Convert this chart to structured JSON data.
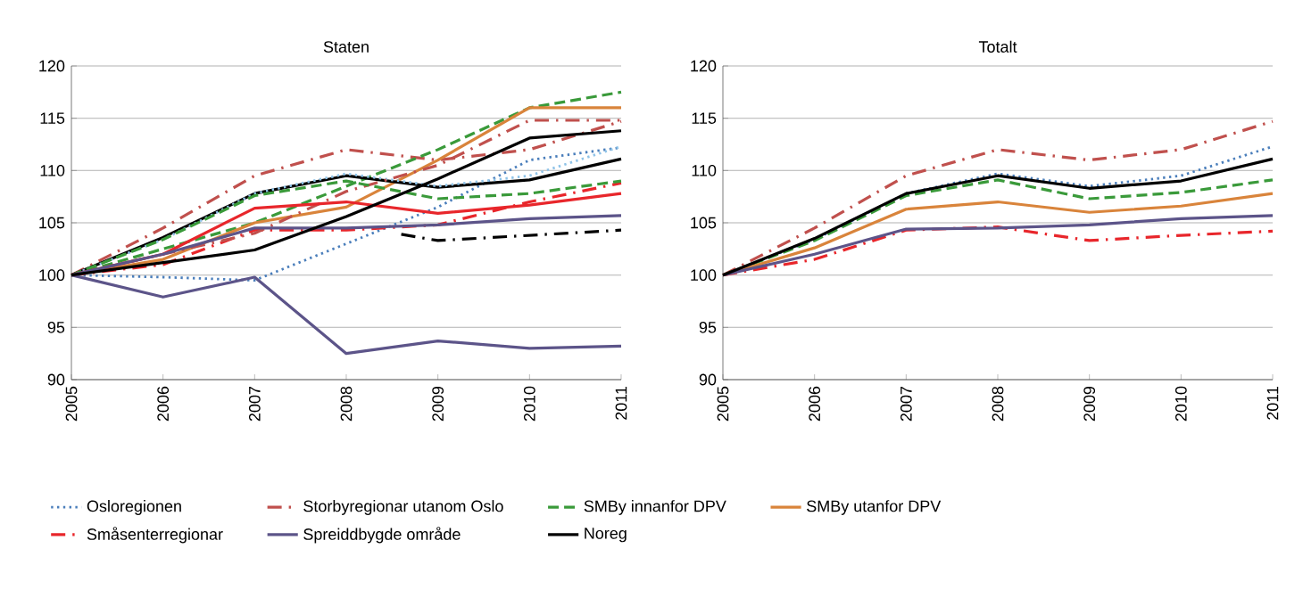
{
  "chart_data": [
    {
      "type": "line",
      "title": "Staten",
      "x": [
        2005,
        2006,
        2007,
        2008,
        2009,
        2010,
        2011
      ],
      "xlim": [
        2005,
        2011
      ],
      "xticks": [
        2005,
        2006,
        2007,
        2008,
        2009,
        2010,
        2011
      ],
      "ylim": [
        90,
        120
      ],
      "yticks": [
        90,
        95,
        100,
        105,
        110,
        115,
        120
      ],
      "grid": "y",
      "legend": "bottom",
      "marker": "none",
      "series": [
        {
          "name": "Osloregionen",
          "color": "#4a7ebb",
          "line_style": "dotted",
          "values": [
            100,
            99.8,
            99.5,
            103,
            106.5,
            111,
            112.2
          ]
        },
        {
          "name": "Storbyregionar utanom Oslo",
          "color": "#c0504d",
          "line_style": "dashdot",
          "values": [
            100,
            104.5,
            109.5,
            112,
            111,
            112,
            114.7
          ]
        },
        {
          "name": "SMBy innanfor DPV",
          "color": "#3a9a3a",
          "line_style": "dashed",
          "values": [
            100,
            102.5,
            105,
            108.5,
            112,
            116,
            117.5
          ]
        },
        {
          "name": "SMBy utanfor DPV",
          "color": "#d9843b",
          "line_style": "solid",
          "values": [
            100,
            101.5,
            105,
            106.5,
            111,
            116,
            116
          ]
        },
        {
          "name": "Småsenterregionar",
          "color": "#e8262b",
          "line_style": "dashdot",
          "values": [
            100,
            101,
            104.3,
            104.3,
            104.8,
            107,
            108.8
          ]
        },
        {
          "name": "Spreiddbygde område",
          "color": "#5c5489",
          "line_style": "solid",
          "values": [
            100,
            97.9,
            99.8,
            92.5,
            93.7,
            93,
            93.2
          ]
        },
        {
          "name": "Noreg",
          "color": "#000000",
          "line_style": "solid",
          "values": [
            100,
            103.6,
            107.8,
            109.5,
            108.4,
            109.1,
            111.1
          ]
        },
        {
          "color": "#8fc3e8",
          "line_style": "dotted",
          "values": [
            100,
            103.4,
            107.8,
            109.7,
            108.5,
            109.5,
            112.3
          ]
        },
        {
          "color": "#c0504d",
          "line_style": "dashdot",
          "values": [
            100,
            102,
            104,
            108,
            110.5,
            114.8,
            114.8
          ]
        },
        {
          "color": "#3a9a3a",
          "line_style": "dashed",
          "values": [
            100,
            103.4,
            107.6,
            109,
            107.3,
            107.8,
            109
          ]
        },
        {
          "color": "#e8262b",
          "line_style": "solid",
          "values": [
            100,
            102,
            106.4,
            107,
            105.9,
            106.7,
            107.8
          ]
        },
        {
          "color": "#5c5489",
          "line_style": "solid",
          "values": [
            100,
            102,
            104.5,
            104.5,
            104.8,
            105.4,
            105.7
          ]
        },
        {
          "color": "#000000",
          "line_style": "solid",
          "values": [
            100,
            101.2,
            102.4,
            105.6,
            109.2,
            113.1,
            113.8
          ]
        },
        {
          "color": "#000000",
          "line_style": "dashdot",
          "x": [
            2008.6,
            2009,
            2010,
            2011
          ],
          "values": [
            103.9,
            103.3,
            103.8,
            104.3
          ]
        }
      ]
    },
    {
      "type": "line",
      "title": "Totalt",
      "x": [
        2005,
        2006,
        2007,
        2008,
        2009,
        2010,
        2011
      ],
      "xlim": [
        2005,
        2011
      ],
      "xticks": [
        2005,
        2006,
        2007,
        2008,
        2009,
        2010,
        2011
      ],
      "ylim": [
        90,
        120
      ],
      "yticks": [
        90,
        95,
        100,
        105,
        110,
        115,
        120
      ],
      "grid": "y",
      "marker": "none",
      "series": [
        {
          "color": "#4a7ebb",
          "line_style": "dotted",
          "values": [
            100,
            103.4,
            107.8,
            109.7,
            108.5,
            109.5,
            112.3
          ]
        },
        {
          "color": "#c0504d",
          "line_style": "dashdot",
          "values": [
            100,
            104.5,
            109.5,
            112,
            111,
            112,
            114.7
          ]
        },
        {
          "color": "#3a9a3a",
          "line_style": "dashed",
          "values": [
            100,
            103.3,
            107.6,
            109.1,
            107.3,
            107.9,
            109.1
          ]
        },
        {
          "color": "#d9843b",
          "line_style": "solid",
          "values": [
            100,
            102.6,
            106.3,
            107,
            106,
            106.6,
            107.8
          ]
        },
        {
          "color": "#e8262b",
          "line_style": "dashdot",
          "values": [
            100,
            101.5,
            104.3,
            104.6,
            103.3,
            103.8,
            104.2
          ]
        },
        {
          "color": "#5c5489",
          "line_style": "solid",
          "values": [
            100,
            102,
            104.4,
            104.5,
            104.8,
            105.4,
            105.7
          ]
        },
        {
          "color": "#000000",
          "line_style": "solid",
          "values": [
            100,
            103.5,
            107.8,
            109.5,
            108.3,
            109,
            111.1
          ]
        }
      ]
    }
  ]
}
